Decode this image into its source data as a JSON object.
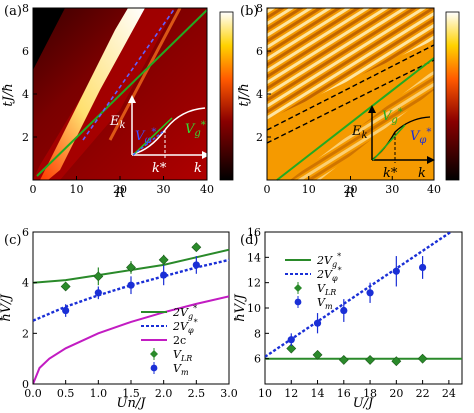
{
  "panels": [
    {
      "id": "a",
      "label": "(a)",
      "xlabel": "R",
      "ylabel": "tJ/ħ",
      "xlim": [
        0,
        40
      ],
      "ylim": [
        0,
        8
      ],
      "xticks": [
        "0",
        "10",
        "20",
        "30",
        "40"
      ],
      "yticks": [
        "2",
        "4",
        "6",
        "8"
      ],
      "inset": {
        "ylabel": "E_k",
        "xlabel": "k",
        "kstar": "k*",
        "vphi": "V*_φ",
        "vg": "V*_g"
      }
    },
    {
      "id": "b",
      "label": "(b)",
      "xlabel": "R",
      "ylabel": "tJ/ħ",
      "xlim": [
        0,
        40
      ],
      "ylim": [
        0,
        8
      ],
      "xticks": [
        "0",
        "10",
        "20",
        "30",
        "40"
      ],
      "yticks": [
        "2",
        "4",
        "6",
        "8"
      ],
      "inset": {
        "ylabel": "E_k",
        "xlabel": "k",
        "kstar": "k*",
        "vphi": "V*_φ",
        "vg": "V*_g"
      }
    }
  ],
  "chart_data": [
    {
      "type": "line",
      "panel": "c",
      "label": "(c)",
      "xlabel": "Un/J",
      "ylabel": "ħV/J",
      "xlim": [
        0,
        3
      ],
      "ylim": [
        0,
        6
      ],
      "xticks": [
        "0.0",
        "0.5",
        "1.0",
        "1.5",
        "2.0",
        "2.5",
        "3.0"
      ],
      "yticks": [
        "0",
        "2",
        "4",
        "6"
      ],
      "legend": "bottom-right",
      "series": [
        {
          "name": "2V*_g",
          "style": "solid",
          "color": "#2a8a2a",
          "x": [
            0,
            0.5,
            1.0,
            1.5,
            2.0,
            2.5,
            3.0
          ],
          "y": [
            4.0,
            4.1,
            4.3,
            4.5,
            4.7,
            5.0,
            5.3
          ]
        },
        {
          "name": "2V*_φ",
          "style": "dashed",
          "color": "#1a2fd6",
          "x": [
            0,
            0.5,
            1.0,
            1.5,
            2.0,
            2.5,
            3.0
          ],
          "y": [
            2.5,
            3.05,
            3.5,
            3.9,
            4.25,
            4.6,
            4.9
          ]
        },
        {
          "name": "2c",
          "style": "solid",
          "color": "#c21cc2",
          "x": [
            0,
            0.1,
            0.25,
            0.5,
            1.0,
            1.5,
            2.0,
            2.5,
            3.0
          ],
          "y": [
            0,
            0.63,
            1.0,
            1.41,
            2.0,
            2.45,
            2.83,
            3.16,
            3.46
          ]
        },
        {
          "name": "V_LR",
          "style": "marker-diamond",
          "color": "#2a8a2a",
          "x": [
            0.5,
            1.0,
            1.5,
            2.0,
            2.5
          ],
          "y": [
            3.85,
            4.25,
            4.6,
            4.9,
            5.4
          ],
          "err": [
            0,
            0.35,
            0.25,
            0.2,
            0
          ]
        },
        {
          "name": "V_m",
          "style": "marker-circle",
          "color": "#1a2fd6",
          "x": [
            0.5,
            1.0,
            1.5,
            2.0,
            2.5
          ],
          "y": [
            2.9,
            3.6,
            3.9,
            4.3,
            4.7
          ],
          "err": [
            0.25,
            0.25,
            0.35,
            0.4,
            0.35
          ]
        }
      ]
    },
    {
      "type": "line",
      "panel": "d",
      "label": "(d)",
      "xlabel": "U/J",
      "ylabel": "ħV/J",
      "xlim": [
        10,
        25
      ],
      "ylim": [
        4,
        16
      ],
      "xticks": [
        "10",
        "12",
        "14",
        "16",
        "18",
        "20",
        "22",
        "24"
      ],
      "yticks": [
        "6",
        "8",
        "10",
        "12",
        "14",
        "16"
      ],
      "legend": "top-left",
      "series": [
        {
          "name": "2V*_g",
          "style": "solid",
          "color": "#2a8a2a",
          "x": [
            10,
            25
          ],
          "y": [
            6,
            6
          ]
        },
        {
          "name": "2V*_φ",
          "style": "dashed",
          "color": "#1a2fd6",
          "x": [
            10,
            25
          ],
          "y": [
            6.15,
            16.6
          ]
        },
        {
          "name": "V_LR",
          "style": "marker-diamond",
          "color": "#2a8a2a",
          "x": [
            12,
            14,
            16,
            18,
            20,
            22
          ],
          "y": [
            6.8,
            6.3,
            5.9,
            5.9,
            5.8,
            6.0
          ],
          "err": [
            0,
            0,
            0,
            0,
            0,
            0
          ]
        },
        {
          "name": "V_m",
          "style": "marker-circle",
          "color": "#1a2fd6",
          "x": [
            12,
            14,
            16,
            18,
            20,
            22
          ],
          "y": [
            7.5,
            8.8,
            9.8,
            11.2,
            12.9,
            13.2
          ],
          "err": [
            0.5,
            0.8,
            0.9,
            0.8,
            1.2,
            0.9
          ]
        }
      ]
    }
  ]
}
